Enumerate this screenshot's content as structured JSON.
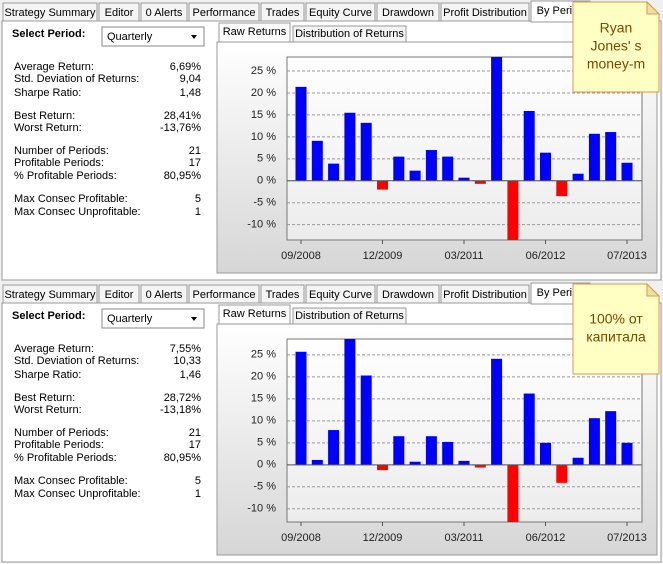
{
  "tabs": [
    "Strategy Summary",
    "Editor",
    "0 Alerts",
    "Performance",
    "Trades",
    "Equity Curve",
    "Drawdown",
    "Profit Distribution",
    "By Period"
  ],
  "panels": [
    {
      "select_label": "Select Period:",
      "select_value": "Quarterly",
      "chart_tabs": [
        "Raw Returns",
        "Distribution of Returns"
      ],
      "note": [
        "Ryan",
        "Jones' s",
        "money-m"
      ],
      "stats": [
        [
          "Average Return:",
          "6,69%"
        ],
        [
          "Std. Deviation of Returns:",
          "9,04"
        ],
        [
          "Sharpe Ratio:",
          "1,48"
        ],
        [
          "Best Return:",
          "28,41%"
        ],
        [
          "Worst Return:",
          "-13,76%"
        ],
        [
          "Number of Periods:",
          "21"
        ],
        [
          "Profitable Periods:",
          "17"
        ],
        [
          "% Profitable Periods:",
          "80,95%"
        ],
        [
          "Max Consec Profitable:",
          "5"
        ],
        [
          "Max Consec Unprofitable:",
          "1"
        ]
      ]
    },
    {
      "select_label": "Select Period:",
      "select_value": "Quarterly",
      "chart_tabs": [
        "Raw Returns",
        "Distribution of Returns"
      ],
      "note": [
        "100% от",
        "капитала"
      ],
      "stats": [
        [
          "Average Return:",
          "7,55%"
        ],
        [
          "Std. Deviation of Returns:",
          "10,33"
        ],
        [
          "Sharpe Ratio:",
          "1,46"
        ],
        [
          "Best Return:",
          "28,72%"
        ],
        [
          "Worst Return:",
          "-13,18%"
        ],
        [
          "Number of Periods:",
          "21"
        ],
        [
          "Profitable Periods:",
          "17"
        ],
        [
          "% Profitable Periods:",
          "80,95%"
        ],
        [
          "Max Consec Profitable:",
          "5"
        ],
        [
          "Max Consec Unprofitable:",
          "1"
        ]
      ]
    }
  ],
  "chart_data": [
    {
      "type": "bar",
      "color": "#0000ff",
      "negative_color": "#ff0000",
      "grid": true,
      "categories": [
        "09/2008",
        null,
        null,
        null,
        null,
        "12/2009",
        null,
        null,
        null,
        null,
        "03/2011",
        null,
        null,
        null,
        null,
        "06/2012",
        null,
        null,
        null,
        null,
        "07/2013"
      ],
      "values": [
        21.4,
        9.1,
        3.9,
        15.5,
        13.2,
        -2,
        5.5,
        2.3,
        7,
        5.5,
        0.7,
        -0.7,
        28.41,
        -13.76,
        15.9,
        6.4,
        -3.5,
        1.6,
        10.7,
        11.1,
        4.1
      ],
      "ylim": [
        -13.5,
        28.2
      ],
      "yticks": [
        {
          "value": -10,
          "label": "-10 %"
        },
        {
          "value": -5,
          "label": "-5 %"
        },
        {
          "value": 0,
          "label": "0 %"
        },
        {
          "value": 5,
          "label": "5 %"
        },
        {
          "value": 10,
          "label": "10 %"
        },
        {
          "value": 15,
          "label": "15 %"
        },
        {
          "value": 20,
          "label": "20 %"
        },
        {
          "value": 25,
          "label": "25 %"
        }
      ]
    },
    {
      "type": "bar",
      "color": "#0000ff",
      "negative_color": "#ff0000",
      "grid": true,
      "categories": [
        "09/2008",
        null,
        null,
        null,
        null,
        "12/2009",
        null,
        null,
        null,
        null,
        "03/2011",
        null,
        null,
        null,
        null,
        "06/2012",
        null,
        null,
        null,
        null,
        "07/2013"
      ],
      "values": [
        25.7,
        1.1,
        7.9,
        28.72,
        20.3,
        -1.2,
        6.5,
        0.7,
        6.5,
        5.2,
        0.9,
        -0.6,
        24.1,
        -13.18,
        16.2,
        5,
        -4.1,
        1.6,
        10.6,
        12.2,
        5
      ],
      "ylim": [
        -13,
        28.6
      ],
      "yticks": [
        {
          "value": -10,
          "label": "-10 %"
        },
        {
          "value": -5,
          "label": "-5 %"
        },
        {
          "value": 0,
          "label": "0 %"
        },
        {
          "value": 5,
          "label": "5 %"
        },
        {
          "value": 10,
          "label": "10 %"
        },
        {
          "value": 15,
          "label": "15 %"
        },
        {
          "value": 20,
          "label": "20 %"
        },
        {
          "value": 25,
          "label": "25 %"
        }
      ]
    }
  ]
}
